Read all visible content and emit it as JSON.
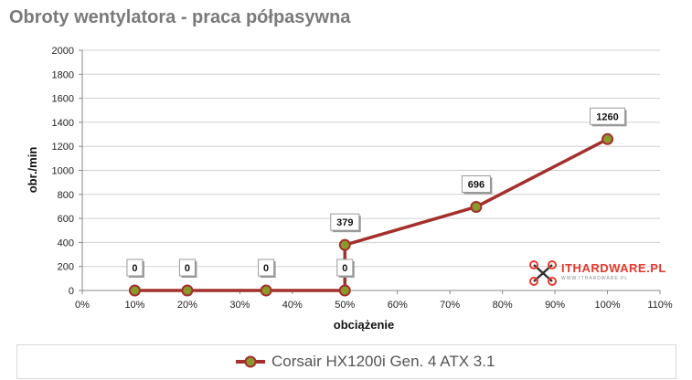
{
  "chart_data": {
    "type": "line",
    "title": "Obroty wentylatora - praca półpasywna",
    "xlabel": "obciążenie",
    "ylabel": "obr./min",
    "xlim": [
      0,
      110
    ],
    "ylim": [
      0,
      2000
    ],
    "x_ticks": [
      "0%",
      "10%",
      "20%",
      "30%",
      "40%",
      "50%",
      "60%",
      "70%",
      "80%",
      "90%",
      "100%",
      "110%"
    ],
    "y_ticks": [
      "0",
      "200",
      "400",
      "600",
      "800",
      "1000",
      "1200",
      "1400",
      "1600",
      "1800",
      "2000"
    ],
    "grid": "horizontal",
    "legend_position": "bottom",
    "series": [
      {
        "name": "Corsair HX1200i Gen. 4 ATX 3.1",
        "color": "#a3302c",
        "marker_color": "#8a9a2a",
        "x": [
          10,
          20,
          35,
          50,
          50,
          75,
          100
        ],
        "y": [
          0,
          0,
          0,
          0,
          379,
          696,
          1260
        ],
        "labels": [
          "0",
          "0",
          "0",
          "0",
          "379",
          "696",
          "1260"
        ]
      }
    ]
  },
  "logo": {
    "text": "ITHARDWARE.PL",
    "subtext": "WWW.ITHARDWARE.PL"
  }
}
